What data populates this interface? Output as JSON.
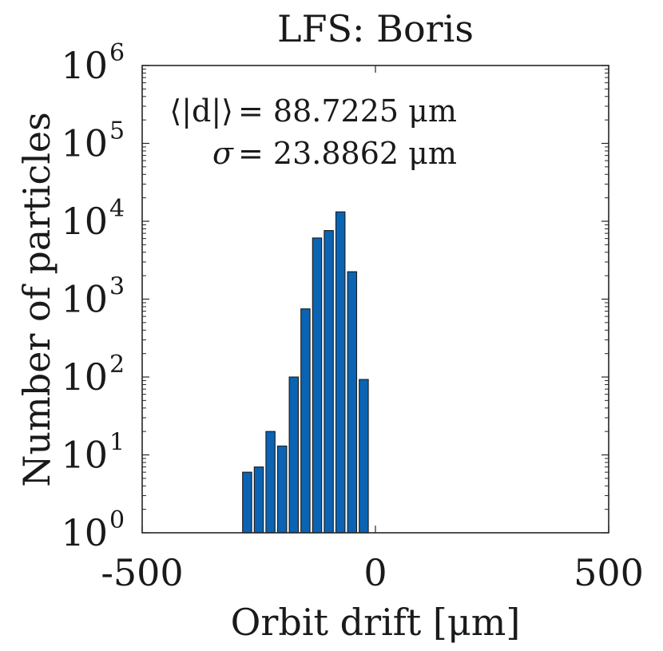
{
  "chart_data": {
    "type": "bar",
    "title": "LFS: Boris",
    "xlabel": "Orbit drift [μm]",
    "ylabel": "Number of particles",
    "xlim": [
      -500,
      500
    ],
    "ylim": [
      1,
      1000000
    ],
    "yscale": "log",
    "grid": false,
    "bar_color": "#0b64b3",
    "bar_edge_color": "#1a1a1a",
    "x_ticks": [
      {
        "value": -500,
        "label": "-500"
      },
      {
        "value": 0,
        "label": "0"
      },
      {
        "value": 500,
        "label": "500"
      }
    ],
    "y_ticks": [
      {
        "value": 1,
        "base": "10",
        "exp": "0"
      },
      {
        "value": 10,
        "base": "10",
        "exp": "1"
      },
      {
        "value": 100,
        "base": "10",
        "exp": "2"
      },
      {
        "value": 1000,
        "base": "10",
        "exp": "3"
      },
      {
        "value": 10000,
        "base": "10",
        "exp": "4"
      },
      {
        "value": 100000,
        "base": "10",
        "exp": "5"
      },
      {
        "value": 1000000,
        "base": "10",
        "exp": "6"
      }
    ],
    "bin_width": 25,
    "bars": [
      {
        "x": -275,
        "value": 6
      },
      {
        "x": -250,
        "value": 7
      },
      {
        "x": -225,
        "value": 20
      },
      {
        "x": -200,
        "value": 13
      },
      {
        "x": -175,
        "value": 100
      },
      {
        "x": -150,
        "value": 750
      },
      {
        "x": -125,
        "value": 6100
      },
      {
        "x": -100,
        "value": 7600
      },
      {
        "x": -75,
        "value": 13200
      },
      {
        "x": -50,
        "value": 2250
      },
      {
        "x": -25,
        "value": 93
      }
    ],
    "annotations": [
      {
        "lhs": "⟨|d|⟩",
        "rhs": "= 88.7225 μm"
      },
      {
        "lhs": "σ",
        "rhs": "= 23.8862 μm"
      }
    ]
  }
}
